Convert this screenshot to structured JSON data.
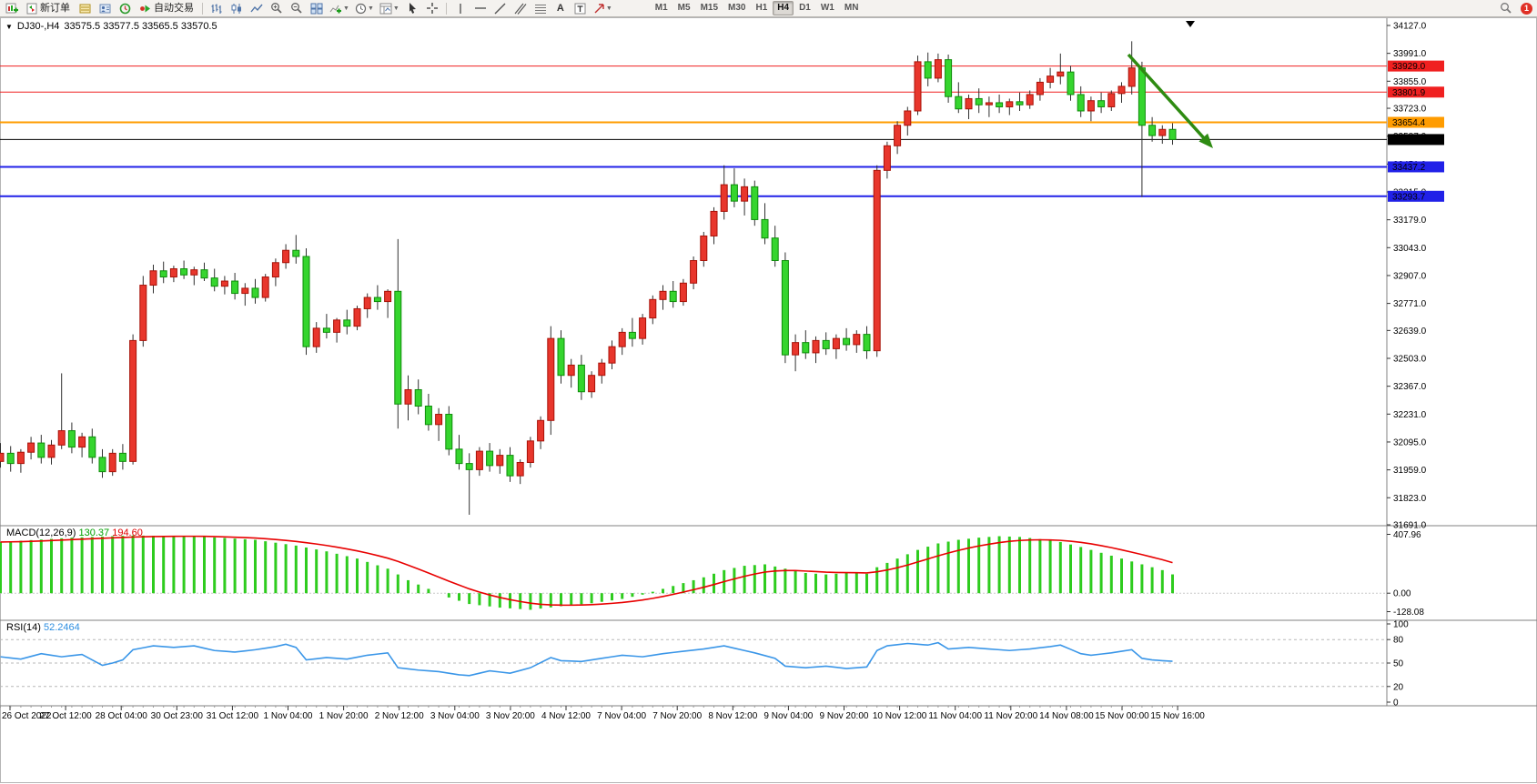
{
  "toolbar": {
    "new_order_label": "新订单",
    "auto_trading_label": "自动交易",
    "timeframes": [
      "M1",
      "M5",
      "M15",
      "M30",
      "H1",
      "H4",
      "D1",
      "W1",
      "MN"
    ],
    "active_timeframe": "H4",
    "notification_count": "1"
  },
  "chart": {
    "title": "DJ30-,H4",
    "ohlc": "33575.5 33577.5 33565.5 33570.5",
    "price_axis": {
      "max": 34127,
      "min": 31691,
      "ticks": [
        "34127.0",
        "33991.0",
        "33855.0",
        "33723.0",
        "33587.0",
        "33451.0",
        "33315.0",
        "33179.0",
        "33043.0",
        "32907.0",
        "32771.0",
        "32639.0",
        "32503.0",
        "32367.0",
        "32231.0",
        "32095.0",
        "31959.0",
        "31823.0",
        "31691.0"
      ]
    },
    "levels": [
      {
        "price": 33929.0,
        "label": "33929.0",
        "color": "#f02020",
        "width": 1
      },
      {
        "price": 33801.9,
        "label": "33801.9",
        "color": "#f02020",
        "width": 1
      },
      {
        "price": 33654.4,
        "label": "33654.4",
        "color": "#ff9c00",
        "width": 2
      },
      {
        "price": 33570.5,
        "label": "33570.5",
        "color": "#000000",
        "width": 1,
        "is_price": true
      },
      {
        "price": 33437.2,
        "label": "33437.2",
        "color": "#2121e8",
        "width": 2
      },
      {
        "price": 33293.7,
        "label": "33293.7",
        "color": "#2121e8",
        "width": 2
      }
    ],
    "time_axis": [
      "26 Oct 2022",
      "27 Oct 12:00",
      "28 Oct 04:00",
      "30 Oct 23:00",
      "31 Oct 12:00",
      "1 Nov 04:00",
      "1 Nov 20:00",
      "2 Nov 12:00",
      "3 Nov 04:00",
      "3 Nov 20:00",
      "4 Nov 12:00",
      "7 Nov 04:00",
      "7 Nov 20:00",
      "8 Nov 12:00",
      "9 Nov 04:00",
      "9 Nov 20:00",
      "10 Nov 12:00",
      "11 Nov 04:00",
      "11 Nov 20:00",
      "14 Nov 08:00",
      "15 Nov 00:00",
      "15 Nov 16:00"
    ],
    "colors": {
      "up_fill": "#e8362c",
      "up_stroke": "#a81208",
      "down_fill": "#35d52e",
      "down_stroke": "#0e8c0a",
      "wick": "#303030"
    },
    "type": "candlestick",
    "candles": [
      [
        32000,
        32090,
        31970,
        32040
      ],
      [
        32040,
        32075,
        31950,
        31990
      ],
      [
        31990,
        32060,
        31945,
        32045
      ],
      [
        32045,
        32120,
        32010,
        32090
      ],
      [
        32090,
        32130,
        31990,
        32020
      ],
      [
        32020,
        32105,
        31985,
        32080
      ],
      [
        32080,
        32430,
        32060,
        32150
      ],
      [
        32150,
        32190,
        32040,
        32070
      ],
      [
        32070,
        32140,
        32020,
        32120
      ],
      [
        32120,
        32160,
        31990,
        32020
      ],
      [
        32020,
        32060,
        31920,
        31950
      ],
      [
        31950,
        32060,
        31930,
        32040
      ],
      [
        32040,
        32085,
        31960,
        32000
      ],
      [
        32000,
        32620,
        31985,
        32590
      ],
      [
        32590,
        32905,
        32560,
        32860
      ],
      [
        32860,
        32960,
        32820,
        32930
      ],
      [
        32930,
        32975,
        32870,
        32900
      ],
      [
        32900,
        32955,
        32875,
        32940
      ],
      [
        32940,
        32980,
        32890,
        32910
      ],
      [
        32910,
        32950,
        32860,
        32935
      ],
      [
        32935,
        32970,
        32880,
        32895
      ],
      [
        32895,
        32940,
        32830,
        32855
      ],
      [
        32855,
        32905,
        32815,
        32880
      ],
      [
        32880,
        32920,
        32790,
        32820
      ],
      [
        32820,
        32870,
        32760,
        32845
      ],
      [
        32845,
        32890,
        32770,
        32800
      ],
      [
        32800,
        32915,
        32780,
        32900
      ],
      [
        32900,
        32990,
        32855,
        32970
      ],
      [
        32970,
        33060,
        32940,
        33030
      ],
      [
        33030,
        33105,
        32965,
        33000
      ],
      [
        33000,
        33040,
        32520,
        32560
      ],
      [
        32560,
        32680,
        32530,
        32650
      ],
      [
        32650,
        32720,
        32600,
        32630
      ],
      [
        32630,
        32700,
        32580,
        32690
      ],
      [
        32690,
        32740,
        32620,
        32660
      ],
      [
        32660,
        32760,
        32640,
        32745
      ],
      [
        32745,
        32820,
        32700,
        32800
      ],
      [
        32800,
        32860,
        32740,
        32780
      ],
      [
        32780,
        32840,
        32700,
        32830
      ],
      [
        32830,
        33085,
        32160,
        32280
      ],
      [
        32280,
        32420,
        32200,
        32350
      ],
      [
        32350,
        32400,
        32230,
        32270
      ],
      [
        32270,
        32330,
        32150,
        32180
      ],
      [
        32180,
        32260,
        32100,
        32230
      ],
      [
        32230,
        32270,
        32030,
        32060
      ],
      [
        32060,
        32130,
        31960,
        31990
      ],
      [
        31990,
        32040,
        31740,
        31960
      ],
      [
        31960,
        32070,
        31930,
        32050
      ],
      [
        32050,
        32090,
        31950,
        31980
      ],
      [
        31980,
        32060,
        31940,
        32030
      ],
      [
        32030,
        32070,
        31900,
        31930
      ],
      [
        31930,
        32010,
        31890,
        31995
      ],
      [
        31995,
        32120,
        31970,
        32100
      ],
      [
        32100,
        32220,
        32060,
        32200
      ],
      [
        32200,
        32660,
        32130,
        32600
      ],
      [
        32600,
        32640,
        32380,
        32420
      ],
      [
        32420,
        32500,
        32360,
        32470
      ],
      [
        32470,
        32520,
        32300,
        32340
      ],
      [
        32340,
        32440,
        32310,
        32420
      ],
      [
        32420,
        32500,
        32380,
        32480
      ],
      [
        32480,
        32590,
        32450,
        32560
      ],
      [
        32560,
        32650,
        32520,
        32630
      ],
      [
        32630,
        32700,
        32560,
        32600
      ],
      [
        32600,
        32720,
        32570,
        32700
      ],
      [
        32700,
        32810,
        32670,
        32790
      ],
      [
        32790,
        32860,
        32740,
        32830
      ],
      [
        32830,
        32880,
        32750,
        32780
      ],
      [
        32780,
        32890,
        32760,
        32870
      ],
      [
        32870,
        33000,
        32840,
        32980
      ],
      [
        32980,
        33120,
        32950,
        33100
      ],
      [
        33100,
        33240,
        33060,
        33220
      ],
      [
        33220,
        33445,
        33180,
        33350
      ],
      [
        33350,
        33430,
        33240,
        33270
      ],
      [
        33270,
        33380,
        33200,
        33340
      ],
      [
        33340,
        33370,
        33150,
        33180
      ],
      [
        33180,
        33260,
        33060,
        33090
      ],
      [
        33090,
        33150,
        32950,
        32980
      ],
      [
        32980,
        33020,
        32480,
        32520
      ],
      [
        32520,
        32620,
        32440,
        32580
      ],
      [
        32580,
        32640,
        32500,
        32530
      ],
      [
        32530,
        32610,
        32480,
        32590
      ],
      [
        32590,
        32630,
        32520,
        32550
      ],
      [
        32550,
        32620,
        32500,
        32600
      ],
      [
        32600,
        32650,
        32540,
        32570
      ],
      [
        32570,
        32640,
        32530,
        32620
      ],
      [
        32620,
        32660,
        32500,
        32540
      ],
      [
        32540,
        33445,
        32510,
        33420
      ],
      [
        33420,
        33560,
        33380,
        33540
      ],
      [
        33540,
        33660,
        33500,
        33640
      ],
      [
        33640,
        33730,
        33590,
        33710
      ],
      [
        33710,
        33980,
        33690,
        33950
      ],
      [
        33950,
        33995,
        33830,
        33870
      ],
      [
        33870,
        33990,
        33850,
        33960
      ],
      [
        33960,
        33985,
        33750,
        33780
      ],
      [
        33780,
        33850,
        33700,
        33720
      ],
      [
        33720,
        33790,
        33670,
        33770
      ],
      [
        33770,
        33820,
        33700,
        33740
      ],
      [
        33740,
        33780,
        33680,
        33750
      ],
      [
        33750,
        33790,
        33700,
        33730
      ],
      [
        33730,
        33770,
        33690,
        33755
      ],
      [
        33755,
        33800,
        33710,
        33740
      ],
      [
        33740,
        33810,
        33720,
        33790
      ],
      [
        33790,
        33870,
        33760,
        33850
      ],
      [
        33850,
        33920,
        33820,
        33880
      ],
      [
        33880,
        33990,
        33840,
        33900
      ],
      [
        33900,
        33930,
        33760,
        33790
      ],
      [
        33790,
        33830,
        33680,
        33710
      ],
      [
        33710,
        33780,
        33660,
        33760
      ],
      [
        33760,
        33800,
        33700,
        33730
      ],
      [
        33730,
        33810,
        33710,
        33795
      ],
      [
        33795,
        33850,
        33750,
        33830
      ],
      [
        33830,
        34050,
        33790,
        33920
      ],
      [
        33920,
        33950,
        33290,
        33640
      ],
      [
        33640,
        33680,
        33560,
        33590
      ],
      [
        33590,
        33640,
        33550,
        33620
      ],
      [
        33620,
        33650,
        33545,
        33570.5
      ]
    ],
    "annotation_arrow": {
      "from": [
        1240,
        60
      ],
      "to": [
        1333,
        163
      ],
      "color": "#2e8b12"
    }
  },
  "macd": {
    "label": "MACD(12,26,9)",
    "value": "130.37",
    "signal_value": "194.60",
    "axis": [
      "407.96",
      "0.00",
      "-128.08"
    ],
    "range": [
      -150,
      430
    ],
    "histogram_color": "#2ecc1e",
    "signal_color": "#e80000",
    "keypoints": [
      [
        0,
        355
      ],
      [
        7,
        385
      ],
      [
        13,
        400
      ],
      [
        19,
        395
      ],
      [
        25,
        370
      ],
      [
        29,
        330
      ],
      [
        32,
        290
      ],
      [
        35,
        240
      ],
      [
        38,
        170
      ],
      [
        40,
        90
      ],
      [
        42,
        30
      ],
      [
        44,
        -30
      ],
      [
        46,
        -75
      ],
      [
        49,
        -100
      ],
      [
        52,
        -115
      ],
      [
        55,
        -90
      ],
      [
        58,
        -70
      ],
      [
        61,
        -40
      ],
      [
        63,
        -10
      ],
      [
        65,
        30
      ],
      [
        67,
        70
      ],
      [
        69,
        110
      ],
      [
        71,
        160
      ],
      [
        73,
        190
      ],
      [
        75,
        200
      ],
      [
        77,
        170
      ],
      [
        79,
        140
      ],
      [
        81,
        130
      ],
      [
        83,
        140
      ],
      [
        85,
        135
      ],
      [
        86,
        180
      ],
      [
        88,
        240
      ],
      [
        90,
        300
      ],
      [
        92,
        345
      ],
      [
        94,
        370
      ],
      [
        96,
        385
      ],
      [
        98,
        395
      ],
      [
        100,
        390
      ],
      [
        102,
        375
      ],
      [
        104,
        355
      ],
      [
        106,
        320
      ],
      [
        108,
        280
      ],
      [
        110,
        240
      ],
      [
        112,
        200
      ],
      [
        114,
        160
      ],
      [
        115,
        130.37
      ]
    ]
  },
  "rsi": {
    "label": "RSI(14)",
    "value": "52.2464",
    "axis": [
      "100",
      "80",
      "50",
      "20",
      "0"
    ],
    "levels": [
      80,
      50,
      20
    ],
    "line_color": "#3a96e8",
    "keypoints": [
      [
        0,
        58
      ],
      [
        2,
        55
      ],
      [
        4,
        62
      ],
      [
        6,
        58
      ],
      [
        8,
        61
      ],
      [
        10,
        47
      ],
      [
        11,
        50
      ],
      [
        12,
        54
      ],
      [
        13,
        67
      ],
      [
        15,
        72
      ],
      [
        17,
        70
      ],
      [
        19,
        72
      ],
      [
        21,
        66
      ],
      [
        23,
        64
      ],
      [
        25,
        67
      ],
      [
        27,
        71
      ],
      [
        28,
        74
      ],
      [
        29,
        70
      ],
      [
        30,
        54
      ],
      [
        32,
        57
      ],
      [
        34,
        55
      ],
      [
        36,
        60
      ],
      [
        38,
        63
      ],
      [
        39,
        44
      ],
      [
        41,
        41
      ],
      [
        43,
        39
      ],
      [
        45,
        35
      ],
      [
        46,
        34
      ],
      [
        48,
        40
      ],
      [
        50,
        37
      ],
      [
        52,
        44
      ],
      [
        54,
        57
      ],
      [
        55,
        53
      ],
      [
        57,
        52
      ],
      [
        59,
        56
      ],
      [
        61,
        60
      ],
      [
        63,
        58
      ],
      [
        65,
        62
      ],
      [
        67,
        65
      ],
      [
        69,
        68
      ],
      [
        71,
        72
      ],
      [
        72,
        69
      ],
      [
        74,
        63
      ],
      [
        76,
        56
      ],
      [
        77,
        46
      ],
      [
        79,
        44
      ],
      [
        81,
        46
      ],
      [
        83,
        43
      ],
      [
        85,
        45
      ],
      [
        86,
        66
      ],
      [
        87,
        72
      ],
      [
        89,
        75
      ],
      [
        91,
        73
      ],
      [
        92,
        76
      ],
      [
        93,
        68
      ],
      [
        95,
        70
      ],
      [
        97,
        68
      ],
      [
        99,
        66
      ],
      [
        101,
        68
      ],
      [
        103,
        71
      ],
      [
        104,
        73
      ],
      [
        106,
        62
      ],
      [
        107,
        60
      ],
      [
        109,
        63
      ],
      [
        110,
        65
      ],
      [
        111,
        67
      ],
      [
        112,
        56
      ],
      [
        113,
        54
      ],
      [
        114,
        53
      ],
      [
        115,
        52.25
      ]
    ]
  }
}
